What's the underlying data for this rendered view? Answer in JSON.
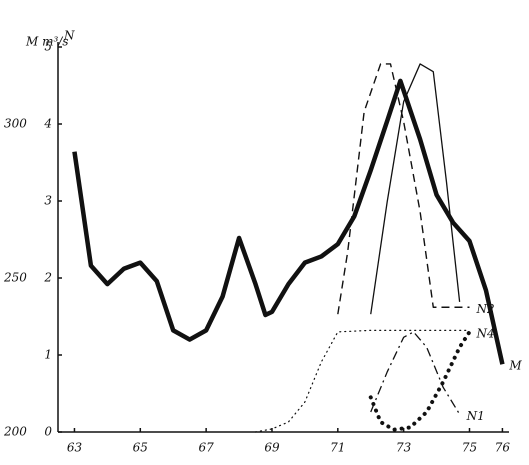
{
  "chart_data": {
    "type": "line",
    "y_label": "M m³/s",
    "y2_label": "N",
    "xlim": [
      62.5,
      76.2
    ],
    "xticks": [
      63,
      65,
      67,
      69,
      71,
      73,
      75,
      76
    ],
    "ylim": [
      200,
      325
    ],
    "yticks": [
      200,
      250,
      300
    ],
    "y2lim": [
      0,
      5
    ],
    "y2ticks": [
      0,
      1,
      2,
      3,
      4,
      5
    ],
    "series": [
      {
        "name": "M",
        "color": "#111111",
        "style": "bold",
        "x": [
          63,
          63.5,
          64,
          64.5,
          65,
          65.5,
          66,
          66.5,
          67,
          67.5,
          68,
          68.5,
          68.8,
          69,
          69.5,
          70,
          70.5,
          71,
          71.5,
          72,
          72.5,
          72.9,
          73.5,
          74,
          74.5,
          75,
          75.5,
          76
        ],
        "values": [
          291,
          254,
          248,
          253,
          255,
          249,
          233,
          230,
          233,
          244,
          263,
          248,
          238,
          239,
          248,
          255,
          257,
          261,
          270,
          285,
          301,
          314,
          295,
          277,
          268,
          262,
          246,
          222
        ]
      },
      {
        "name": "N2",
        "color": "#111111",
        "style": "dashed",
        "axis": "y2",
        "x": [
          71,
          71.3,
          71.8,
          72.3,
          72.6,
          73,
          73.5,
          73.9,
          75
        ],
        "values": [
          1.53,
          2.34,
          4.16,
          4.78,
          4.78,
          4.03,
          2.86,
          1.62,
          1.62
        ]
      },
      {
        "color": "#111111",
        "style": "thin",
        "axis": "y2",
        "x": [
          72,
          72.5,
          73,
          73.5,
          73.9,
          74.3,
          74.7
        ],
        "values": [
          1.53,
          2.99,
          4.29,
          4.78,
          4.68,
          3.25,
          1.69
        ]
      },
      {
        "color": "#111111",
        "style": "dotted",
        "axis": "y2",
        "x": [
          68.5,
          69,
          69.5,
          70,
          70.5,
          71,
          72,
          73,
          74,
          75
        ],
        "values": [
          0,
          0.04,
          0.13,
          0.39,
          0.91,
          1.3,
          1.32,
          1.32,
          1.32,
          1.32
        ]
      },
      {
        "name": "N4",
        "color": "#111111",
        "style": "bold-dotted",
        "axis": "y2",
        "x": [
          72,
          72.3,
          72.7,
          73.2,
          73.7,
          74.2,
          74.7,
          75
        ],
        "values": [
          0.45,
          0.13,
          0.03,
          0.06,
          0.26,
          0.65,
          1.1,
          1.3
        ]
      },
      {
        "name": "N1",
        "color": "#111111",
        "style": "dashdot",
        "axis": "y2",
        "x": [
          72,
          72.5,
          73,
          73.3,
          73.7,
          74.2,
          74.7
        ],
        "values": [
          0.26,
          0.78,
          1.23,
          1.3,
          1.1,
          0.58,
          0.23
        ]
      }
    ]
  }
}
